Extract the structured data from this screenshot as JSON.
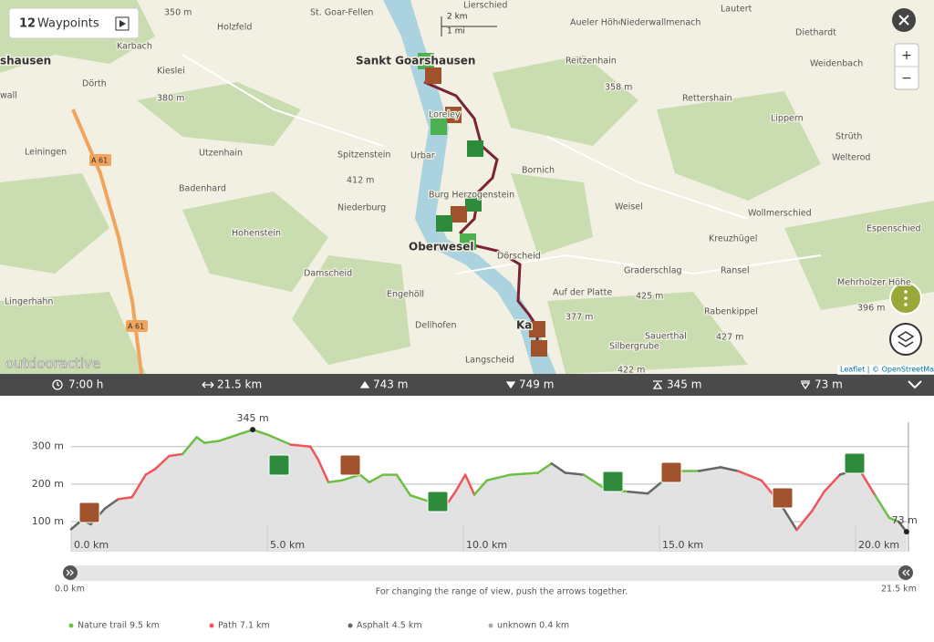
{
  "waypoints_button": {
    "count": "12",
    "label": "Waypoints"
  },
  "zoom": {
    "in": "+",
    "out": "−"
  },
  "map": {
    "scale": [
      "2 km",
      "1 mi"
    ],
    "labels": [
      "350 m",
      "St. Goar-Fellen",
      "Lierschied",
      "Aueler Höhe",
      "Lautert",
      "Holzfeld",
      "Niederwallmenach",
      "Diethardt",
      "Karbach",
      "Sankt Goarshausen",
      "Reitzenhain",
      "Weidenbach",
      "shausen",
      "Kieslei",
      "Dörth",
      "380 m",
      "358 m",
      "Rettershain",
      "wall",
      "Loreley",
      "Lippern",
      "Strüth",
      "Leiningen",
      "Utzenhain",
      "Spitzenstein",
      "Urbar",
      "Bornich",
      "Welterod",
      "412 m",
      "Badenhard",
      "Burg Herzogenstein",
      "Weisel",
      "Wollmerschied",
      "Hohenstein",
      "Niederburg",
      "Espenschied",
      "Kreuzhügel",
      "Oberwesel",
      "Dörscheid",
      "Damscheid",
      "Graderschlag",
      "Ransel",
      "425 m",
      "Lingerhahn",
      "Engehöll",
      "Auf der Platte",
      "Mehrholzer Höhe",
      "396 m",
      "377 m",
      "Rabenkippel",
      "Dellhofen",
      "Ka",
      "Sauerthal",
      "427 m",
      "Silbergrube",
      "Langscheid",
      "422 m"
    ],
    "road_shields": [
      "A 61",
      "A 61"
    ],
    "brand": "outdooractive",
    "attribution": "Leaflet | © OpenStreetMap"
  },
  "stats": {
    "duration": "7:00 h",
    "distance": "21.5 km",
    "ascent": "743 m",
    "descent": "749 m",
    "highest": "345 m",
    "lowest": "73 m"
  },
  "elevation_profile": {
    "type": "area",
    "x": [
      0,
      0.28,
      0.5,
      0.86,
      1.2,
      1.55,
      1.9,
      2.14,
      2.5,
      2.84,
      3.2,
      3.4,
      3.77,
      4.2,
      4.63,
      5.05,
      5.6,
      6.1,
      6.3,
      6.56,
      6.9,
      7.37,
      7.6,
      7.95,
      8.3,
      8.65,
      9.1,
      9.47,
      9.8,
      10.05,
      10.28,
      10.6,
      11.2,
      11.9,
      12.25,
      12.6,
      13.07,
      13.65,
      14.2,
      14.7,
      15.05,
      15.4,
      16.0,
      16.56,
      17.0,
      17.6,
      18.07,
      18.5,
      18.9,
      19.2,
      19.6,
      19.9,
      20.15,
      20.5,
      20.86,
      21.1,
      21.3
    ],
    "values": [
      80,
      105,
      93,
      135,
      160,
      165,
      225,
      240,
      275,
      280,
      325,
      310,
      315,
      330,
      345,
      330,
      305,
      300,
      265,
      205,
      210,
      225,
      205,
      225,
      225,
      170,
      155,
      130,
      180,
      225,
      172,
      210,
      225,
      230,
      255,
      230,
      225,
      185,
      180,
      175,
      205,
      235,
      235,
      245,
      235,
      210,
      150,
      78,
      130,
      180,
      225,
      235,
      230,
      170,
      110,
      100,
      73
    ],
    "surface": [
      2,
      2,
      2,
      2,
      2,
      1,
      1,
      1,
      1,
      1,
      0,
      0,
      0,
      0,
      0,
      0,
      0,
      1,
      1,
      1,
      0,
      0,
      0,
      0,
      0,
      0,
      0,
      0,
      1,
      1,
      1,
      0,
      0,
      0,
      0,
      2,
      2,
      0,
      0,
      2,
      2,
      0,
      0,
      2,
      2,
      1,
      1,
      2,
      1,
      1,
      1,
      2,
      1,
      1,
      0,
      0,
      2
    ],
    "xlim": [
      0,
      21.5
    ],
    "ylim": [
      20,
      360
    ],
    "xticks": [
      {
        "value": 0,
        "label": "0.0 km"
      },
      {
        "value": 5,
        "label": "5.0 km"
      },
      {
        "value": 10,
        "label": "10.0 km"
      },
      {
        "value": 15,
        "label": "15.0 km"
      },
      {
        "value": 20,
        "label": "20.0 km"
      }
    ],
    "yticks": [
      {
        "value": 100,
        "label": "100 m"
      },
      {
        "value": 200,
        "label": "200 m"
      },
      {
        "value": 300,
        "label": "300 m"
      }
    ],
    "max_label": "345 m",
    "min_label": "73 m",
    "fill": "#e2e2e2",
    "legend": [
      {
        "label": "Nature trail 9.5 km",
        "color": "#6cbf44"
      },
      {
        "label": "Path 7.1 km",
        "color": "#f0555b"
      },
      {
        "label": "Asphalt 4.5 km",
        "color": "#666666"
      },
      {
        "label": "unknown 0.4 km",
        "color": "#aaaaaa"
      }
    ]
  },
  "range_slider": {
    "start": "0.0 km",
    "end": "21.5 km",
    "hint": "For changing the range of view, push the arrows together."
  }
}
